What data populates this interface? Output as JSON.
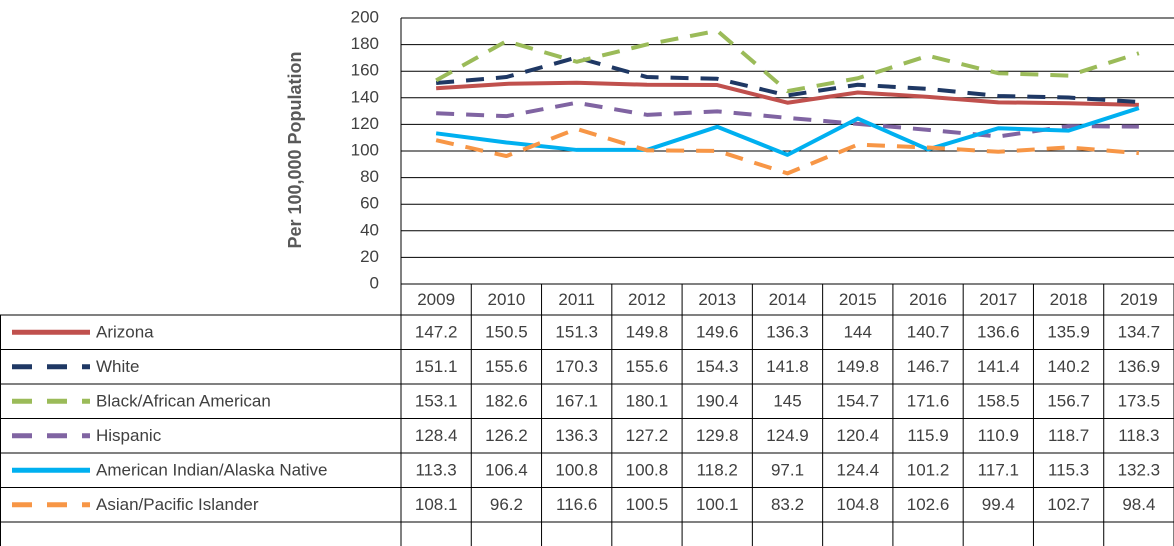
{
  "chart_data": {
    "type": "line",
    "y_label": "Per 100,000 Population",
    "categories": [
      "2009",
      "2010",
      "2011",
      "2012",
      "2013",
      "2014",
      "2015",
      "2016",
      "2017",
      "2018",
      "2019"
    ],
    "ylim": [
      0,
      200
    ],
    "yticks": [
      0,
      20,
      40,
      60,
      80,
      100,
      120,
      140,
      160,
      180,
      200
    ],
    "grid": true,
    "series": [
      {
        "name": "Arizona",
        "color": "#c0504d",
        "dashed": false,
        "values": [
          147.2,
          150.5,
          151.3,
          149.8,
          149.6,
          136.3,
          144,
          140.7,
          136.6,
          135.9,
          134.7
        ]
      },
      {
        "name": "White",
        "color": "#1f3864",
        "dashed": true,
        "values": [
          151.1,
          155.6,
          170.3,
          155.6,
          154.3,
          141.8,
          149.8,
          146.7,
          141.4,
          140.2,
          136.9
        ]
      },
      {
        "name": "Black/African American",
        "color": "#9bbb59",
        "dashed": true,
        "values": [
          153.1,
          182.6,
          167.1,
          180.1,
          190.4,
          145,
          154.7,
          171.6,
          158.5,
          156.7,
          173.5
        ]
      },
      {
        "name": "Hispanic",
        "color": "#8064a2",
        "dashed": true,
        "values": [
          128.4,
          126.2,
          136.3,
          127.2,
          129.8,
          124.9,
          120.4,
          115.9,
          110.9,
          118.7,
          118.3
        ]
      },
      {
        "name": "American Indian/Alaska Native",
        "color": "#00b0f0",
        "dashed": false,
        "values": [
          113.3,
          106.4,
          100.8,
          100.8,
          118.2,
          97.1,
          124.4,
          101.2,
          117.1,
          115.3,
          132.3
        ]
      },
      {
        "name": "Asian/Pacific Islander",
        "color": "#f79646",
        "dashed": true,
        "values": [
          108.1,
          96.2,
          116.6,
          100.5,
          100.1,
          83.2,
          104.8,
          102.6,
          99.4,
          102.7,
          98.4
        ]
      }
    ]
  }
}
